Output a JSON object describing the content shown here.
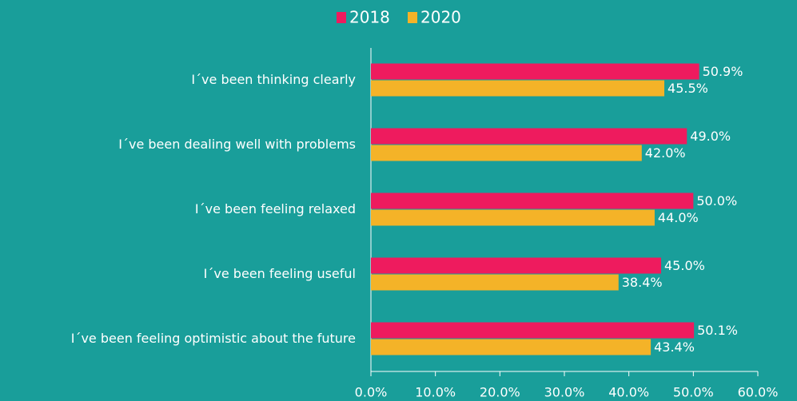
{
  "chart_data": {
    "type": "bar",
    "orientation": "horizontal",
    "categories": [
      "I´ve been thinking clearly",
      "I´ve been dealing well with problems",
      "I´ve been feeling relaxed",
      "I´ve been feeling useful",
      "I´ve been feeling optimistic about the future"
    ],
    "series": [
      {
        "name": "2018",
        "color": "#ee1b5e",
        "values": [
          50.9,
          49.0,
          50.0,
          45.0,
          50.1
        ],
        "value_labels": [
          "50.9%",
          "49.0%",
          "50.0%",
          "45.0%",
          "50.1%"
        ]
      },
      {
        "name": "2020",
        "color": "#f4b328",
        "values": [
          45.5,
          42.0,
          44.0,
          38.4,
          43.4
        ],
        "value_labels": [
          "45.5%",
          "42.0%",
          "44.0%",
          "38.4%",
          "43.4%"
        ]
      }
    ],
    "xlim": [
      0,
      60
    ],
    "xticks": [
      {
        "value": 0,
        "label": "0.0%"
      },
      {
        "value": 10,
        "label": "10.0%"
      },
      {
        "value": 20,
        "label": "20.0%"
      },
      {
        "value": 30,
        "label": "30.0%"
      },
      {
        "value": 40,
        "label": "40.0%"
      },
      {
        "value": 50,
        "label": "50.0%"
      },
      {
        "value": 60,
        "label": "60.0%"
      }
    ],
    "legend": "top"
  }
}
